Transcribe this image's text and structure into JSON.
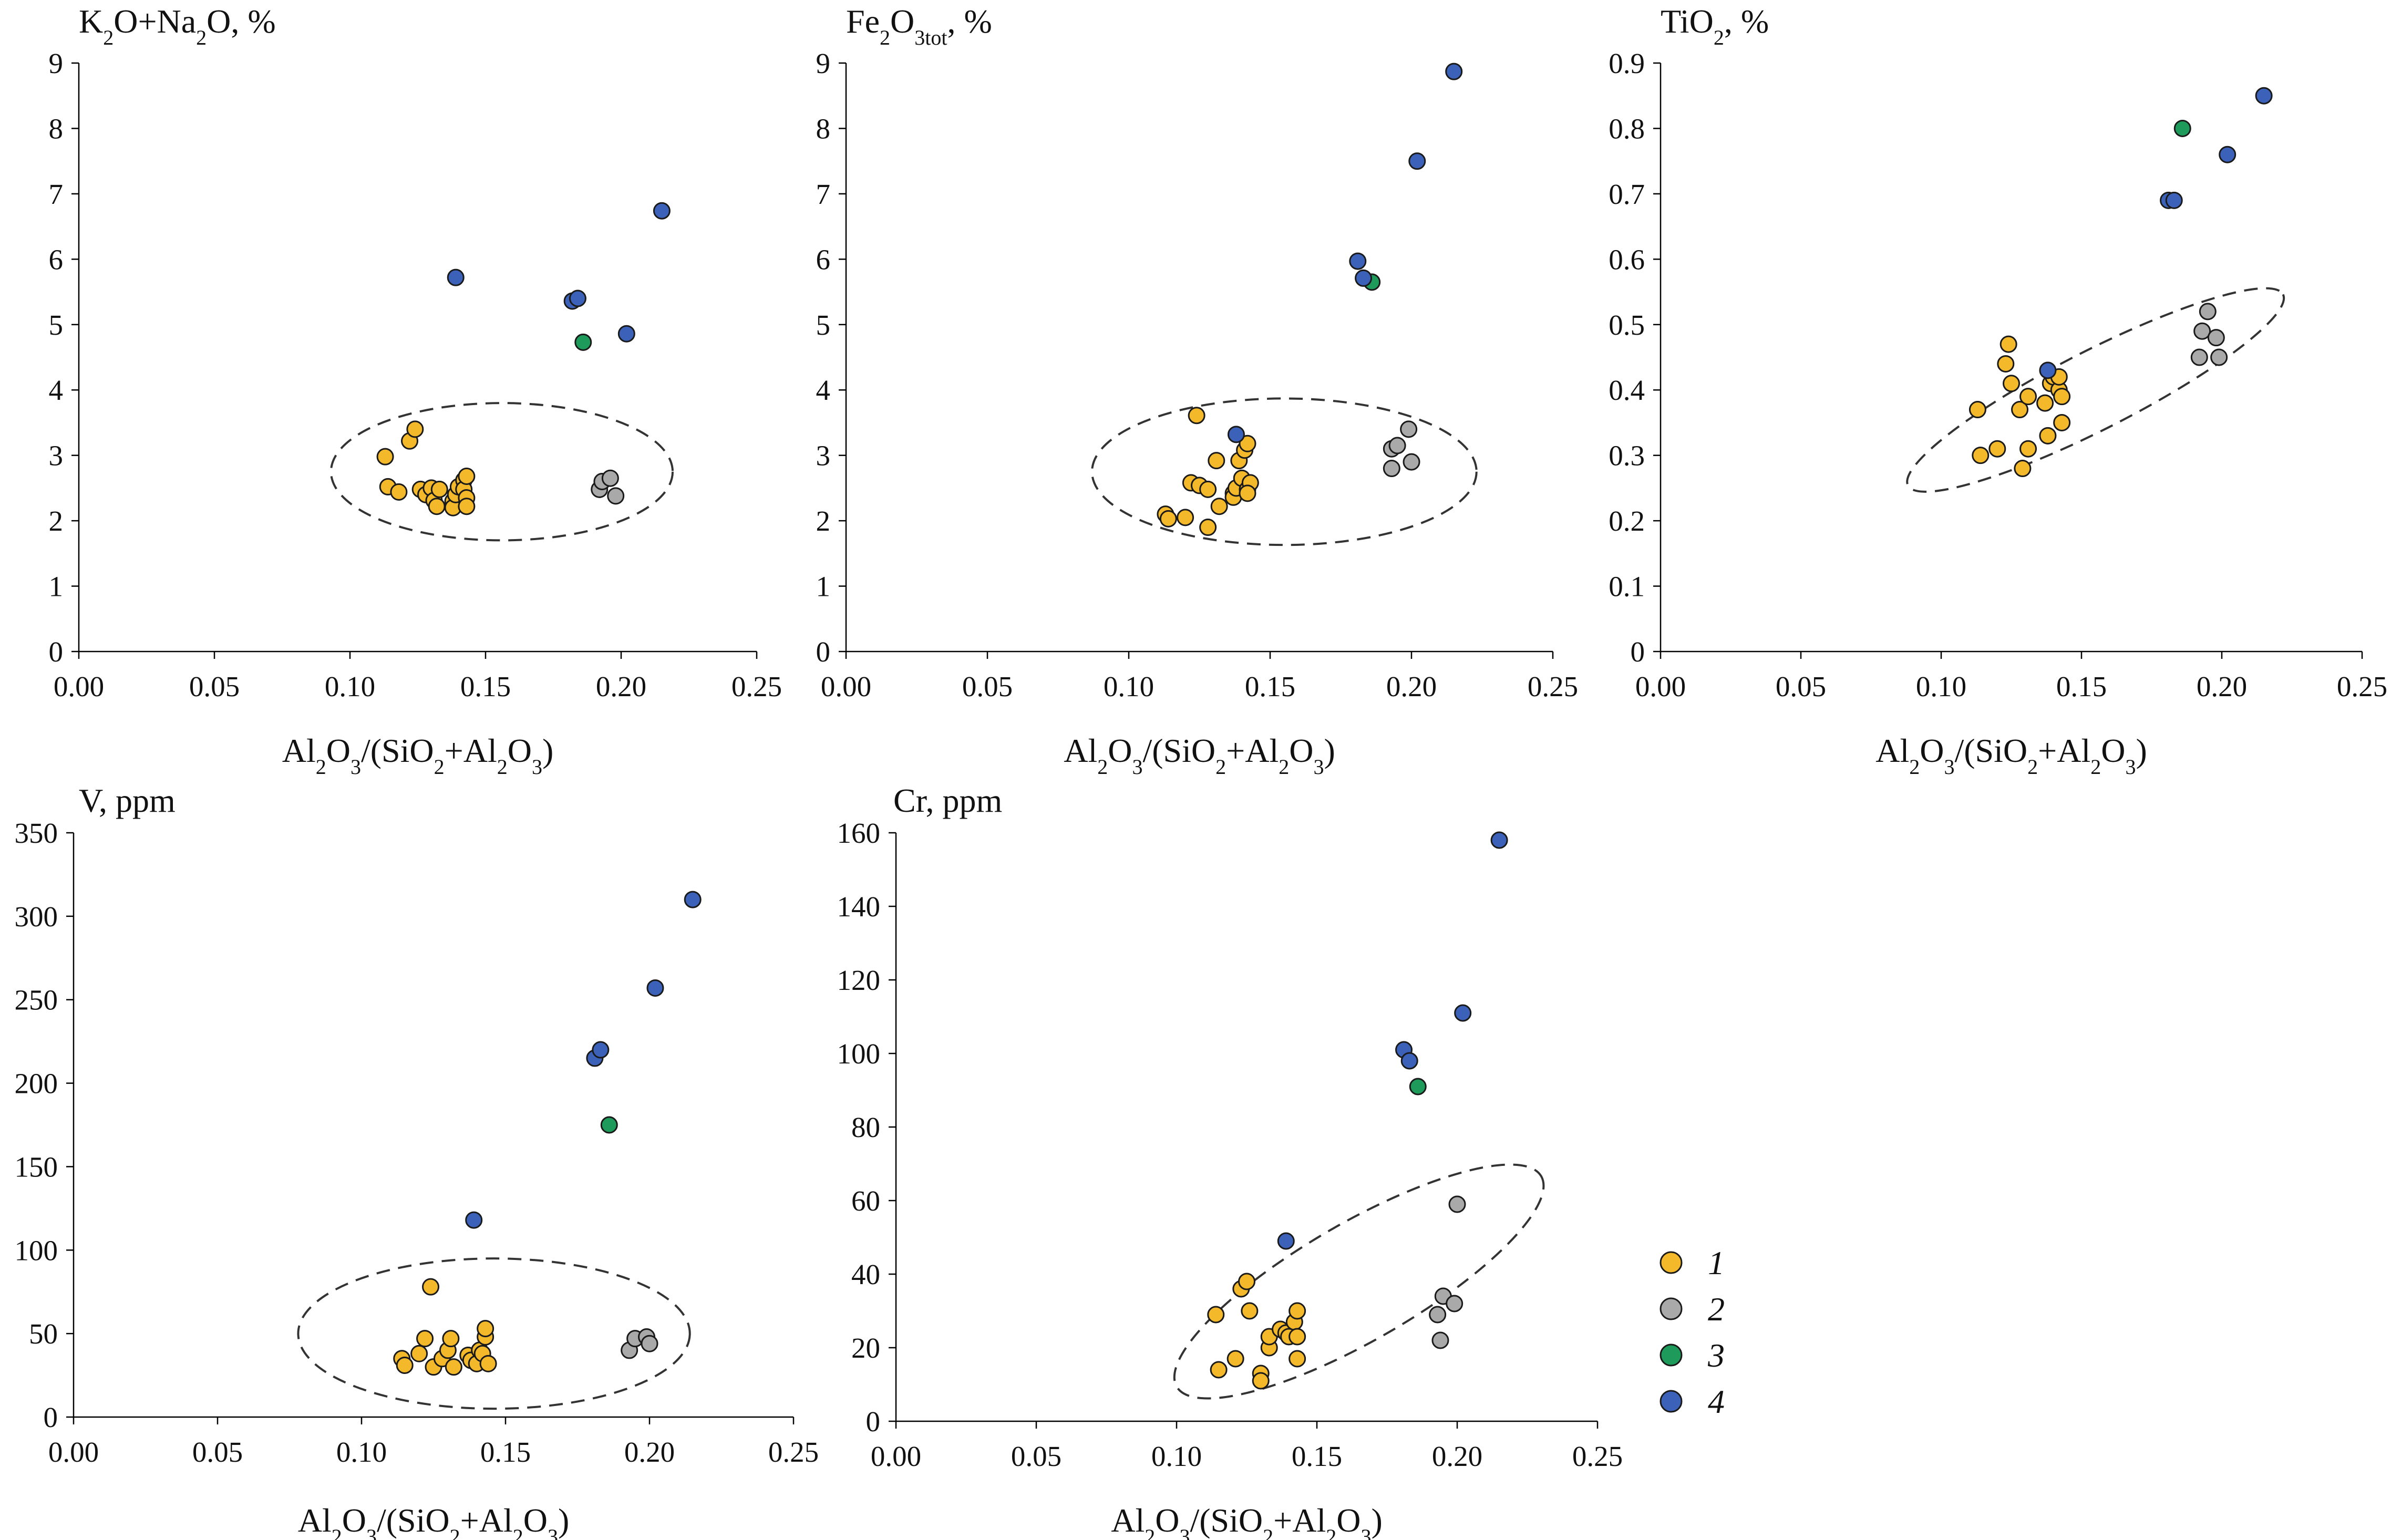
{
  "series_colors": {
    "1": "#f4b92a",
    "2": "#a9a9a9",
    "3": "#1e9b5a",
    "4": "#3b62b8"
  },
  "legend": [
    {
      "name": "1",
      "color": "#f4b92a"
    },
    {
      "name": "2",
      "color": "#a9a9a9"
    },
    {
      "name": "3",
      "color": "#1e9b5a"
    },
    {
      "name": "4",
      "color": "#3b62b8"
    }
  ],
  "chart_data": [
    {
      "type": "scatter",
      "title_parts": [
        {
          "t": "K"
        },
        {
          "t": "2",
          "sub": true
        },
        {
          "t": "O+Na"
        },
        {
          "t": "2",
          "sub": true
        },
        {
          "t": "O, %"
        }
      ],
      "xlabel_parts": [
        {
          "t": "Al"
        },
        {
          "t": "2",
          "sub": true
        },
        {
          "t": "O"
        },
        {
          "t": "3",
          "sub": true
        },
        {
          "t": "/(SiO"
        },
        {
          "t": "2",
          "sub": true
        },
        {
          "t": "+Al"
        },
        {
          "t": "2",
          "sub": true
        },
        {
          "t": "O"
        },
        {
          "t": "3",
          "sub": true
        },
        {
          "t": ")"
        }
      ],
      "xlim": [
        0,
        0.25
      ],
      "ylim": [
        0,
        9
      ],
      "x_ticks": [
        "0.00",
        "0.05",
        "0.10",
        "0.15",
        "0.20",
        "0.25"
      ],
      "y_ticks": [
        "0",
        "1",
        "2",
        "3",
        "4",
        "5",
        "6",
        "7",
        "8",
        "9"
      ],
      "ellipse": {
        "cx": 0.156,
        "cy": 2.75,
        "rx": 0.063,
        "ry": 1.05,
        "rotate": 0
      },
      "series": [
        {
          "name": "1",
          "points": [
            [
              0.113,
              2.98
            ],
            [
              0.114,
              2.52
            ],
            [
              0.118,
              2.44
            ],
            [
              0.122,
              3.22
            ],
            [
              0.124,
              3.4
            ],
            [
              0.126,
              2.48
            ],
            [
              0.128,
              2.4
            ],
            [
              0.13,
              2.5
            ],
            [
              0.131,
              2.31
            ],
            [
              0.132,
              2.22
            ],
            [
              0.133,
              2.48
            ],
            [
              0.138,
              2.3
            ],
            [
              0.138,
              2.2
            ],
            [
              0.139,
              2.4
            ],
            [
              0.14,
              2.52
            ],
            [
              0.142,
              2.62
            ],
            [
              0.142,
              2.48
            ],
            [
              0.143,
              2.35
            ],
            [
              0.143,
              2.22
            ],
            [
              0.143,
              2.68
            ]
          ]
        },
        {
          "name": "2",
          "points": [
            [
              0.192,
              2.48
            ],
            [
              0.193,
              2.6
            ],
            [
              0.196,
              2.65
            ],
            [
              0.198,
              2.38
            ]
          ]
        },
        {
          "name": "3",
          "points": [
            [
              0.186,
              4.73
            ]
          ]
        },
        {
          "name": "4",
          "points": [
            [
              0.139,
              5.72
            ],
            [
              0.182,
              5.36
            ],
            [
              0.184,
              5.4
            ],
            [
              0.202,
              4.86
            ],
            [
              0.215,
              6.74
            ]
          ]
        }
      ]
    },
    {
      "type": "scatter",
      "title_parts": [
        {
          "t": "Fe"
        },
        {
          "t": "2",
          "sub": true
        },
        {
          "t": "O"
        },
        {
          "t": "3tot",
          "sub": true
        },
        {
          "t": ", %"
        }
      ],
      "xlabel_parts": [
        {
          "t": "Al"
        },
        {
          "t": "2",
          "sub": true
        },
        {
          "t": "O"
        },
        {
          "t": "3",
          "sub": true
        },
        {
          "t": "/(SiO"
        },
        {
          "t": "2",
          "sub": true
        },
        {
          "t": "+Al"
        },
        {
          "t": "2",
          "sub": true
        },
        {
          "t": "O"
        },
        {
          "t": "3",
          "sub": true
        },
        {
          "t": ")"
        }
      ],
      "xlim": [
        0,
        0.25
      ],
      "ylim": [
        0,
        9
      ],
      "x_ticks": [
        "0.00",
        "0.05",
        "0.10",
        "0.15",
        "0.20",
        "0.25"
      ],
      "y_ticks": [
        "0",
        "1",
        "2",
        "3",
        "4",
        "5",
        "6",
        "7",
        "8",
        "9"
      ],
      "ellipse": {
        "cx": 0.155,
        "cy": 2.75,
        "rx": 0.068,
        "ry": 1.12,
        "rotate": 0
      },
      "series": [
        {
          "name": "1",
          "points": [
            [
              0.113,
              2.1
            ],
            [
              0.114,
              2.03
            ],
            [
              0.12,
              2.05
            ],
            [
              0.122,
              2.58
            ],
            [
              0.124,
              3.61
            ],
            [
              0.125,
              2.54
            ],
            [
              0.128,
              2.48
            ],
            [
              0.128,
              1.9
            ],
            [
              0.131,
              2.92
            ],
            [
              0.132,
              2.22
            ],
            [
              0.137,
              2.42
            ],
            [
              0.137,
              2.36
            ],
            [
              0.138,
              2.5
            ],
            [
              0.139,
              2.92
            ],
            [
              0.14,
              2.65
            ],
            [
              0.141,
              3.08
            ],
            [
              0.142,
              2.48
            ],
            [
              0.142,
              3.18
            ],
            [
              0.143,
              2.58
            ],
            [
              0.142,
              2.42
            ]
          ]
        },
        {
          "name": "2",
          "points": [
            [
              0.193,
              3.1
            ],
            [
              0.193,
              2.8
            ],
            [
              0.195,
              3.15
            ],
            [
              0.199,
              3.4
            ],
            [
              0.2,
              2.9
            ]
          ]
        },
        {
          "name": "3",
          "points": [
            [
              0.186,
              5.65
            ]
          ]
        },
        {
          "name": "4",
          "points": [
            [
              0.138,
              3.32
            ],
            [
              0.181,
              5.97
            ],
            [
              0.183,
              5.71
            ],
            [
              0.202,
              7.5
            ],
            [
              0.215,
              8.87
            ]
          ]
        }
      ]
    },
    {
      "type": "scatter",
      "title_parts": [
        {
          "t": "TiO"
        },
        {
          "t": "2",
          "sub": true
        },
        {
          "t": ", %"
        }
      ],
      "xlabel_parts": [
        {
          "t": "Al"
        },
        {
          "t": "2",
          "sub": true
        },
        {
          "t": "O"
        },
        {
          "t": "3",
          "sub": true
        },
        {
          "t": "/(SiO"
        },
        {
          "t": "2",
          "sub": true
        },
        {
          "t": "+Al"
        },
        {
          "t": "2",
          "sub": true
        },
        {
          "t": "O"
        },
        {
          "t": "3",
          "sub": true
        },
        {
          "t": ")"
        }
      ],
      "xlim": [
        0,
        0.25
      ],
      "ylim": [
        0,
        0.9
      ],
      "x_ticks": [
        "0.00",
        "0.05",
        "0.10",
        "0.15",
        "0.20",
        "0.25"
      ],
      "y_ticks": [
        "0",
        "0.1",
        "0.2",
        "0.3",
        "0.4",
        "0.5",
        "0.6",
        "0.7",
        "0.8",
        "0.9"
      ],
      "ellipse": {
        "cx": 0.155,
        "cy": 0.4,
        "rx": 0.075,
        "ry": 0.06,
        "rotate": -27
      },
      "series": [
        {
          "name": "1",
          "points": [
            [
              0.113,
              0.37
            ],
            [
              0.114,
              0.3
            ],
            [
              0.12,
              0.31
            ],
            [
              0.123,
              0.44
            ],
            [
              0.124,
              0.47
            ],
            [
              0.125,
              0.41
            ],
            [
              0.128,
              0.37
            ],
            [
              0.129,
              0.28
            ],
            [
              0.131,
              0.39
            ],
            [
              0.131,
              0.31
            ],
            [
              0.137,
              0.38
            ],
            [
              0.138,
              0.33
            ],
            [
              0.139,
              0.41
            ],
            [
              0.14,
              0.42
            ],
            [
              0.142,
              0.4
            ],
            [
              0.142,
              0.42
            ],
            [
              0.143,
              0.35
            ],
            [
              0.143,
              0.39
            ]
          ]
        },
        {
          "name": "2",
          "points": [
            [
              0.192,
              0.45
            ],
            [
              0.193,
              0.49
            ],
            [
              0.195,
              0.52
            ],
            [
              0.198,
              0.48
            ],
            [
              0.199,
              0.45
            ]
          ]
        },
        {
          "name": "3",
          "points": [
            [
              0.186,
              0.8
            ]
          ]
        },
        {
          "name": "4",
          "points": [
            [
              0.138,
              0.43
            ],
            [
              0.181,
              0.69
            ],
            [
              0.183,
              0.69
            ],
            [
              0.202,
              0.76
            ],
            [
              0.215,
              0.85
            ]
          ]
        }
      ]
    },
    {
      "type": "scatter",
      "title_parts": [
        {
          "t": "V, ppm"
        }
      ],
      "xlabel_parts": [
        {
          "t": "Al"
        },
        {
          "t": "2",
          "sub": true
        },
        {
          "t": "O"
        },
        {
          "t": "3",
          "sub": true
        },
        {
          "t": "/(SiO"
        },
        {
          "t": "2",
          "sub": true
        },
        {
          "t": "+Al"
        },
        {
          "t": "2",
          "sub": true
        },
        {
          "t": "O"
        },
        {
          "t": "3",
          "sub": true
        },
        {
          "t": ")"
        }
      ],
      "xlim": [
        0,
        0.25
      ],
      "ylim": [
        0,
        350
      ],
      "x_ticks": [
        "0.00",
        "0.05",
        "0.10",
        "0.15",
        "0.20",
        "0.25"
      ],
      "y_ticks": [
        "0",
        "50",
        "100",
        "150",
        "200",
        "250",
        "300",
        "350"
      ],
      "ellipse": {
        "cx": 0.146,
        "cy": 50,
        "rx": 0.068,
        "ry": 45,
        "rotate": 0
      },
      "series": [
        {
          "name": "1",
          "points": [
            [
              0.114,
              35
            ],
            [
              0.115,
              31
            ],
            [
              0.12,
              38
            ],
            [
              0.122,
              47
            ],
            [
              0.124,
              78
            ],
            [
              0.125,
              30
            ],
            [
              0.128,
              35
            ],
            [
              0.13,
              40
            ],
            [
              0.131,
              47
            ],
            [
              0.132,
              30
            ],
            [
              0.137,
              37
            ],
            [
              0.138,
              34
            ],
            [
              0.14,
              32
            ],
            [
              0.141,
              40
            ],
            [
              0.142,
              38
            ],
            [
              0.143,
              48
            ],
            [
              0.143,
              53
            ],
            [
              0.144,
              32
            ]
          ]
        },
        {
          "name": "2",
          "points": [
            [
              0.193,
              40
            ],
            [
              0.195,
              47
            ],
            [
              0.199,
              48
            ],
            [
              0.2,
              44
            ]
          ]
        },
        {
          "name": "3",
          "points": [
            [
              0.186,
              175
            ]
          ]
        },
        {
          "name": "4",
          "points": [
            [
              0.139,
              118
            ],
            [
              0.181,
              215
            ],
            [
              0.183,
              220
            ],
            [
              0.202,
              257
            ],
            [
              0.215,
              310
            ]
          ]
        }
      ]
    },
    {
      "type": "scatter",
      "title_parts": [
        {
          "t": "Cr, ppm"
        }
      ],
      "xlabel_parts": [
        {
          "t": "Al"
        },
        {
          "t": "2",
          "sub": true
        },
        {
          "t": "O"
        },
        {
          "t": "3",
          "sub": true
        },
        {
          "t": "/(SiO"
        },
        {
          "t": "2",
          "sub": true
        },
        {
          "t": "+Al"
        },
        {
          "t": "2",
          "sub": true
        },
        {
          "t": "O"
        },
        {
          "t": "3",
          "sub": true
        },
        {
          "t": ")"
        }
      ],
      "xlim": [
        0,
        0.25
      ],
      "ylim": [
        0,
        160
      ],
      "x_ticks": [
        "0.00",
        "0.05",
        "0.10",
        "0.15",
        "0.20",
        "0.25"
      ],
      "y_ticks": [
        "0",
        "20",
        "40",
        "60",
        "80",
        "100",
        "120",
        "140",
        "160"
      ],
      "ellipse": {
        "cx": 0.165,
        "cy": 38,
        "rx": 0.075,
        "ry": 16,
        "rotate": -30
      },
      "series": [
        {
          "name": "1",
          "points": [
            [
              0.114,
              29
            ],
            [
              0.115,
              14
            ],
            [
              0.121,
              17
            ],
            [
              0.123,
              36
            ],
            [
              0.125,
              38
            ],
            [
              0.126,
              30
            ],
            [
              0.13,
              13
            ],
            [
              0.13,
              11
            ],
            [
              0.133,
              20
            ],
            [
              0.133,
              23
            ],
            [
              0.137,
              25
            ],
            [
              0.139,
              24
            ],
            [
              0.14,
              23
            ],
            [
              0.142,
              27
            ],
            [
              0.143,
              30
            ],
            [
              0.143,
              17
            ],
            [
              0.143,
              23
            ]
          ]
        },
        {
          "name": "2",
          "points": [
            [
              0.193,
              29
            ],
            [
              0.194,
              22
            ],
            [
              0.195,
              34
            ],
            [
              0.199,
              32
            ],
            [
              0.2,
              59
            ]
          ]
        },
        {
          "name": "3",
          "points": [
            [
              0.186,
              91
            ]
          ]
        },
        {
          "name": "4",
          "points": [
            [
              0.139,
              49
            ],
            [
              0.181,
              101
            ],
            [
              0.183,
              98
            ],
            [
              0.202,
              111
            ],
            [
              0.215,
              158
            ]
          ]
        }
      ]
    }
  ]
}
